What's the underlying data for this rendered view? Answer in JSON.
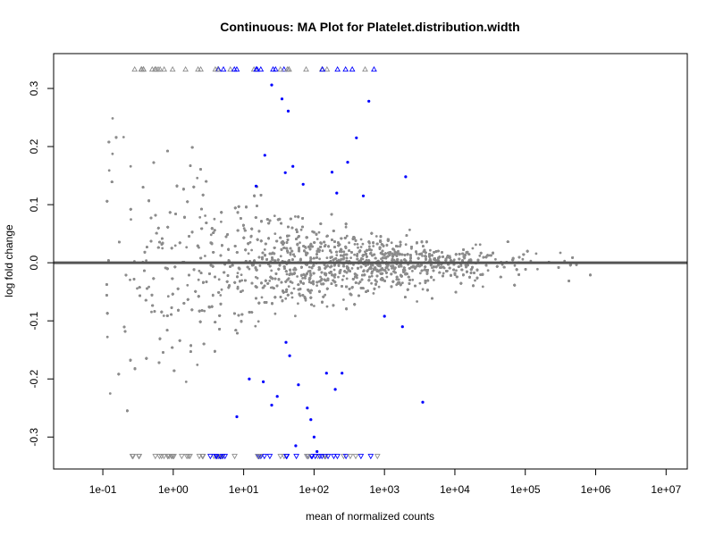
{
  "chart_data": {
    "type": "scatter",
    "title": "Continuous: MA Plot for Platelet.distribution.width",
    "xlabel": "mean of normalized counts",
    "ylabel": "log fold change",
    "x_scale": "log10",
    "xlim": [
      0.02,
      20000000
    ],
    "ylim": [
      -0.355,
      0.36
    ],
    "x_ticks": [
      {
        "value": 0.1,
        "label": "1e-01"
      },
      {
        "value": 1,
        "label": "1e+00"
      },
      {
        "value": 10,
        "label": "1e+01"
      },
      {
        "value": 100,
        "label": "1e+02"
      },
      {
        "value": 1000,
        "label": "1e+03"
      },
      {
        "value": 10000,
        "label": "1e+04"
      },
      {
        "value": 100000,
        "label": "1e+05"
      },
      {
        "value": 1000000,
        "label": "1e+06"
      },
      {
        "value": 10000000,
        "label": "1e+07"
      }
    ],
    "y_ticks": [
      {
        "value": -0.3,
        "label": "-0.3"
      },
      {
        "value": -0.2,
        "label": "-0.2"
      },
      {
        "value": -0.1,
        "label": "-0.1"
      },
      {
        "value": 0.0,
        "label": "0.0"
      },
      {
        "value": 0.1,
        "label": "0.1"
      },
      {
        "value": 0.2,
        "label": "0.2"
      },
      {
        "value": 0.3,
        "label": "0.3"
      }
    ],
    "reference_line": {
      "y": 0,
      "color": "#555555"
    },
    "colors": {
      "not_significant": "#8c8c8c",
      "significant": "#0000ff",
      "axis": "#000000"
    },
    "series": [
      {
        "significant": true,
        "points": [
          {
            "x": 25,
            "y": 0.306
          },
          {
            "x": 35,
            "y": 0.282
          },
          {
            "x": 600,
            "y": 0.278
          },
          {
            "x": 43,
            "y": 0.261
          },
          {
            "x": 400,
            "y": 0.215
          },
          {
            "x": 20,
            "y": 0.185
          },
          {
            "x": 300,
            "y": 0.173
          },
          {
            "x": 50,
            "y": 0.166
          },
          {
            "x": 180,
            "y": 0.156
          },
          {
            "x": 2000,
            "y": 0.148
          },
          {
            "x": 39,
            "y": 0.155
          },
          {
            "x": 70,
            "y": 0.135
          },
          {
            "x": 15,
            "y": 0.132
          },
          {
            "x": 210,
            "y": 0.12
          },
          {
            "x": 500,
            "y": 0.115
          },
          {
            "x": 1000,
            "y": -0.092
          },
          {
            "x": 1800,
            "y": -0.11
          },
          {
            "x": 40,
            "y": -0.137
          },
          {
            "x": 12,
            "y": -0.2
          },
          {
            "x": 60,
            "y": -0.21
          },
          {
            "x": 30,
            "y": -0.23
          },
          {
            "x": 90,
            "y": -0.27
          },
          {
            "x": 100,
            "y": -0.3
          },
          {
            "x": 150,
            "y": -0.19
          },
          {
            "x": 200,
            "y": -0.218
          },
          {
            "x": 45,
            "y": -0.16
          },
          {
            "x": 3500,
            "y": -0.24
          },
          {
            "x": 25,
            "y": -0.245
          },
          {
            "x": 80,
            "y": -0.25
          },
          {
            "x": 8,
            "y": -0.265
          },
          {
            "x": 55,
            "y": -0.315
          },
          {
            "x": 110,
            "y": -0.325
          },
          {
            "x": 19,
            "y": -0.205
          },
          {
            "x": 250,
            "y": -0.19
          }
        ]
      }
    ]
  }
}
